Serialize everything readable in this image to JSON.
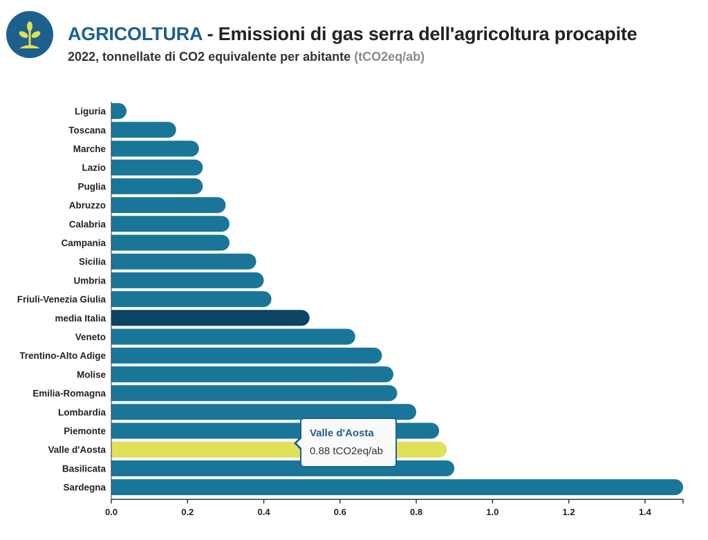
{
  "header": {
    "category": "AGRICOLTURA",
    "title_rest": " - Emissioni di gas serra dell'agricoltura procapite",
    "subtitle": "2022, tonnellate di CO2 equivalente per abitante",
    "unit": "(tCO2eq/ab)",
    "logo_icon": "sprout-icon"
  },
  "colors": {
    "bar": "#1a7699",
    "average": "#0d4463",
    "highlight": "#e0e05a",
    "brand": "#1d5f8f"
  },
  "chart_data": {
    "type": "bar",
    "orientation": "horizontal",
    "categories": [
      "Liguria",
      "Toscana",
      "Marche",
      "Lazio",
      "Puglia",
      "Abruzzo",
      "Calabria",
      "Campania",
      "Sicilia",
      "Umbria",
      "Friuli-Venezia Giulia",
      "media Italia",
      "Veneto",
      "Trentino-Alto Adige",
      "Molise",
      "Emilia-Romagna",
      "Lombardia",
      "Piemonte",
      "Valle d'Aosta",
      "Basilicata",
      "Sardegna"
    ],
    "values": [
      0.04,
      0.17,
      0.23,
      0.24,
      0.24,
      0.3,
      0.31,
      0.31,
      0.38,
      0.4,
      0.42,
      0.52,
      0.64,
      0.71,
      0.74,
      0.75,
      0.8,
      0.86,
      0.88,
      0.9,
      1.5
    ],
    "average_category": "media Italia",
    "highlighted_category": "Valle d'Aosta",
    "xlim": [
      0,
      1.5
    ],
    "xticks": [
      0.0,
      0.2,
      0.4,
      0.6,
      0.8,
      1.0,
      1.2,
      1.4
    ],
    "xtick_labels": [
      "0.0",
      "0.2",
      "0.4",
      "0.6",
      "0.8",
      "1.0",
      "1.2",
      "1.4"
    ],
    "grid": false,
    "legend": "none"
  },
  "tooltip": {
    "title": "Valle d'Aosta",
    "value": "0.88 tCO2eq/ab"
  }
}
